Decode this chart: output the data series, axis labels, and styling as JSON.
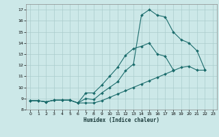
{
  "xlabel": "Humidex (Indice chaleur)",
  "xlim": [
    -0.5,
    23.5
  ],
  "ylim": [
    8.3,
    17.5
  ],
  "xtick_vals": [
    0,
    1,
    2,
    3,
    4,
    5,
    6,
    7,
    8,
    9,
    10,
    11,
    12,
    13,
    14,
    15,
    16,
    17,
    18,
    19,
    20,
    21,
    22,
    23
  ],
  "ytick_vals": [
    8,
    9,
    10,
    11,
    12,
    13,
    14,
    15,
    16,
    17
  ],
  "background_color": "#cce8e8",
  "grid_color": "#aacccc",
  "line_color": "#1a6b6b",
  "line1_x": [
    0,
    1,
    2,
    3,
    4,
    5,
    6,
    7,
    8,
    9,
    10,
    11,
    12,
    13,
    14,
    15,
    16,
    17,
    18,
    19,
    20,
    21,
    22
  ],
  "line1_y": [
    8.8,
    8.8,
    8.7,
    8.85,
    8.85,
    8.85,
    8.6,
    8.6,
    8.6,
    8.8,
    9.1,
    9.4,
    9.7,
    10.0,
    10.3,
    10.6,
    10.9,
    11.2,
    11.5,
    11.8,
    11.9,
    11.55,
    11.55
  ],
  "line2_x": [
    0,
    1,
    2,
    3,
    4,
    5,
    6,
    7,
    8,
    9,
    10,
    11,
    12,
    13,
    14,
    15,
    16,
    17,
    18,
    19,
    20,
    21,
    22
  ],
  "line2_y": [
    8.8,
    8.8,
    8.7,
    8.85,
    8.85,
    8.85,
    8.6,
    9.5,
    9.5,
    10.2,
    11.0,
    11.8,
    12.9,
    13.5,
    13.7,
    14.0,
    13.0,
    12.8,
    11.6,
    null,
    null,
    null,
    null
  ],
  "line3_x": [
    0,
    1,
    2,
    3,
    4,
    5,
    6,
    7,
    8,
    9,
    10,
    11,
    12,
    13,
    14,
    15,
    16,
    17,
    18,
    19,
    20,
    21,
    22
  ],
  "line3_y": [
    8.8,
    8.8,
    8.7,
    8.85,
    8.85,
    8.85,
    8.6,
    9.0,
    8.9,
    9.5,
    10.0,
    10.5,
    11.5,
    12.1,
    16.5,
    17.0,
    16.5,
    16.35,
    15.0,
    14.3,
    14.0,
    13.3,
    11.6
  ]
}
